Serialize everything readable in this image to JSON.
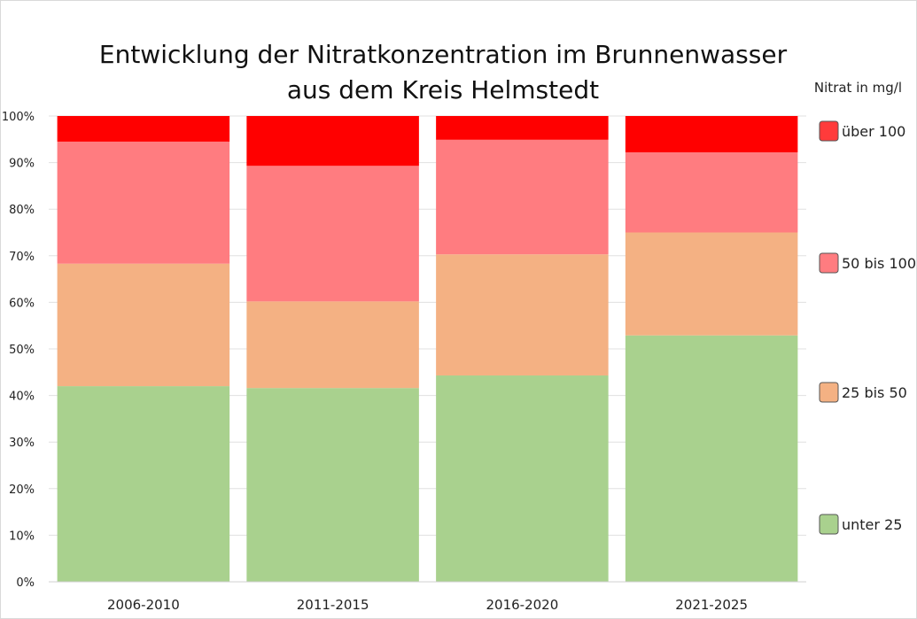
{
  "chart_data": {
    "type": "bar",
    "stacked": true,
    "normalized": true,
    "title_line1": "Entwicklung der Nitratkonzentration im Brunnenwasser",
    "title_line2": "aus dem Kreis Helmstedt",
    "xlabel": "",
    "ylabel": "",
    "ylim": [
      0,
      100
    ],
    "y_ticks": [
      "0%",
      "10%",
      "20%",
      "30%",
      "40%",
      "50%",
      "60%",
      "70%",
      "80%",
      "90%",
      "100%"
    ],
    "grid": true,
    "categories": [
      "2006-2010",
      "2011-2015",
      "2016-2020",
      "2021-2025"
    ],
    "legend_title": "Nitrat in mg/l",
    "legend_position": "right",
    "series": [
      {
        "name": "unter 25",
        "color": "#a9d18e",
        "values": [
          42,
          41.6,
          44.3,
          52.9
        ]
      },
      {
        "name": "25 bis 50",
        "color": "#f4b183",
        "values": [
          26.3,
          18.6,
          26.0,
          22.1
        ]
      },
      {
        "name": "50 bis 100",
        "color": "#ff7c80",
        "values": [
          26.2,
          29.1,
          24.6,
          17.2
        ]
      },
      {
        "name": "über 100",
        "color": "#ff0000",
        "values": [
          5.5,
          10.7,
          5.1,
          7.8
        ]
      }
    ],
    "legend_swatch_colors": [
      "#ff3b3b",
      "#ff7c80",
      "#f4b183",
      "#a9d18e"
    ]
  }
}
